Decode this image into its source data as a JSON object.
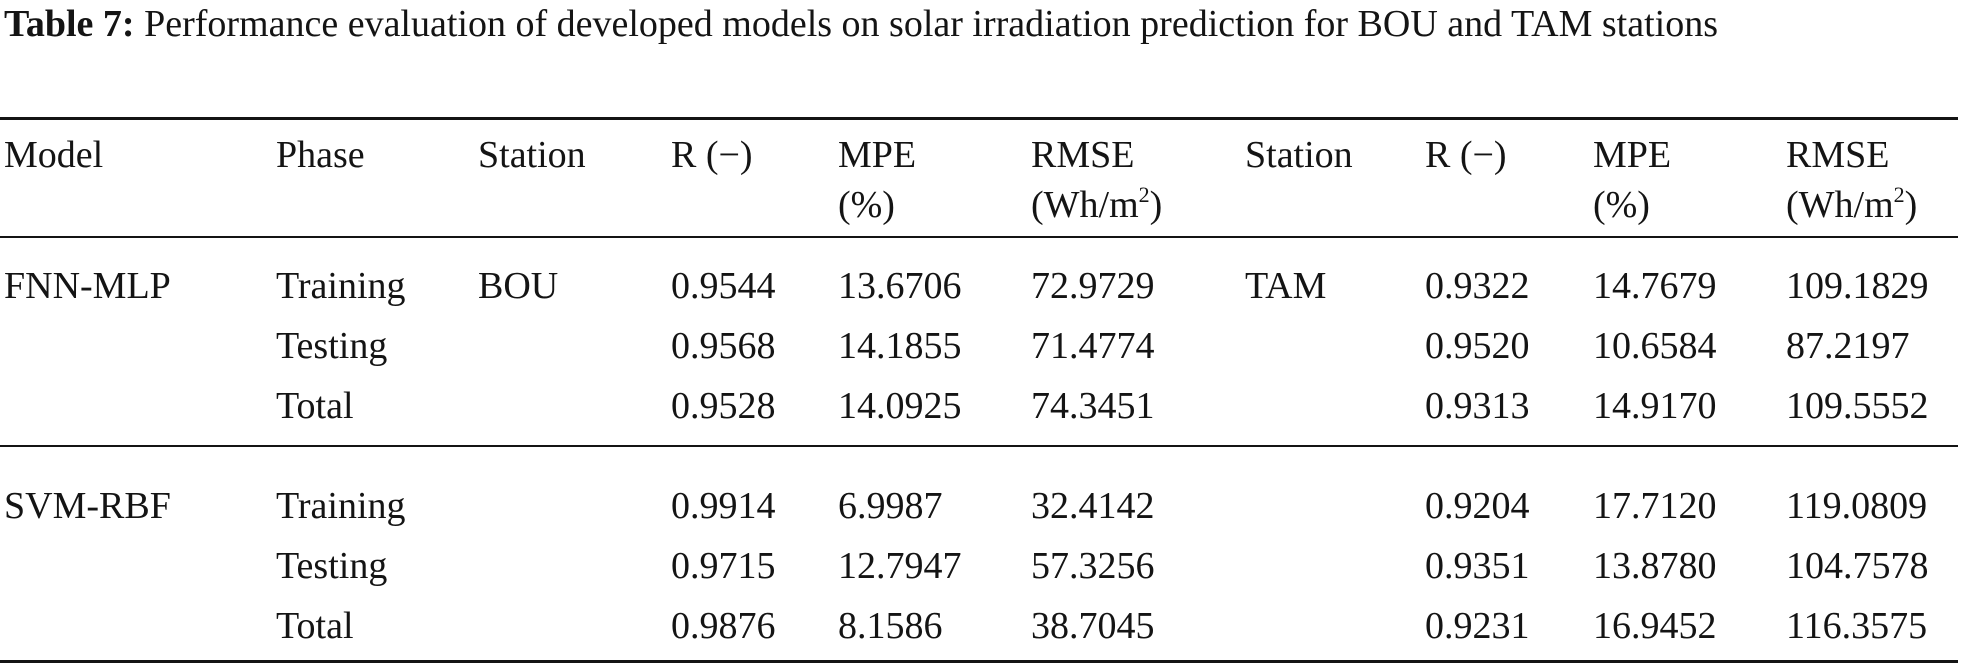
{
  "caption": {
    "label": "Table 7:",
    "text": "Performance evaluation of developed models on solar irradiation prediction for BOU and TAM stations"
  },
  "headers": {
    "model": "Model",
    "phase": "Phase",
    "station1": "Station",
    "r1": "R (−)",
    "mpe1_top": "MPE",
    "mpe1_unit": "(%)",
    "rmse1_top": "RMSE",
    "rmse1_unit": "(Wh/m",
    "rmse1_sup": "2",
    "rmse1_close": ")",
    "station2": "Station",
    "r2": "R (−)",
    "mpe2_top": "MPE",
    "mpe2_unit": "(%)",
    "rmse2_top": "RMSE",
    "rmse2_unit": "(Wh/m",
    "rmse2_sup": "2",
    "rmse2_close": ")"
  },
  "rows": [
    {
      "model": "FNN-MLP",
      "phase": "Training",
      "station1": "BOU",
      "r1": "0.9544",
      "mpe1": "13.6706",
      "rmse1": "72.9729",
      "station2": "TAM",
      "r2": "0.9322",
      "mpe2": "14.7679",
      "rmse2": "109.1829"
    },
    {
      "model": "",
      "phase": "Testing",
      "station1": "",
      "r1": "0.9568",
      "mpe1": "14.1855",
      "rmse1": "71.4774",
      "station2": "",
      "r2": "0.9520",
      "mpe2": "10.6584",
      "rmse2": "87.2197"
    },
    {
      "model": "",
      "phase": "Total",
      "station1": "",
      "r1": "0.9528",
      "mpe1": "14.0925",
      "rmse1": "74.3451",
      "station2": "",
      "r2": "0.9313",
      "mpe2": "14.9170",
      "rmse2": "109.5552"
    },
    {
      "model": "SVM-RBF",
      "phase": "Training",
      "station1": "",
      "r1": "0.9914",
      "mpe1": "6.9987",
      "rmse1": "32.4142",
      "station2": "",
      "r2": "0.9204",
      "mpe2": "17.7120",
      "rmse2": "119.0809"
    },
    {
      "model": "",
      "phase": "Testing",
      "station1": "",
      "r1": "0.9715",
      "mpe1": "12.7947",
      "rmse1": "57.3256",
      "station2": "",
      "r2": "0.9351",
      "mpe2": "13.8780",
      "rmse2": "104.7578"
    },
    {
      "model": "",
      "phase": "Total",
      "station1": "",
      "r1": "0.9876",
      "mpe1": "8.1586",
      "rmse1": "38.7045",
      "station2": "",
      "r2": "0.9231",
      "mpe2": "16.9452",
      "rmse2": "116.3575"
    }
  ]
}
